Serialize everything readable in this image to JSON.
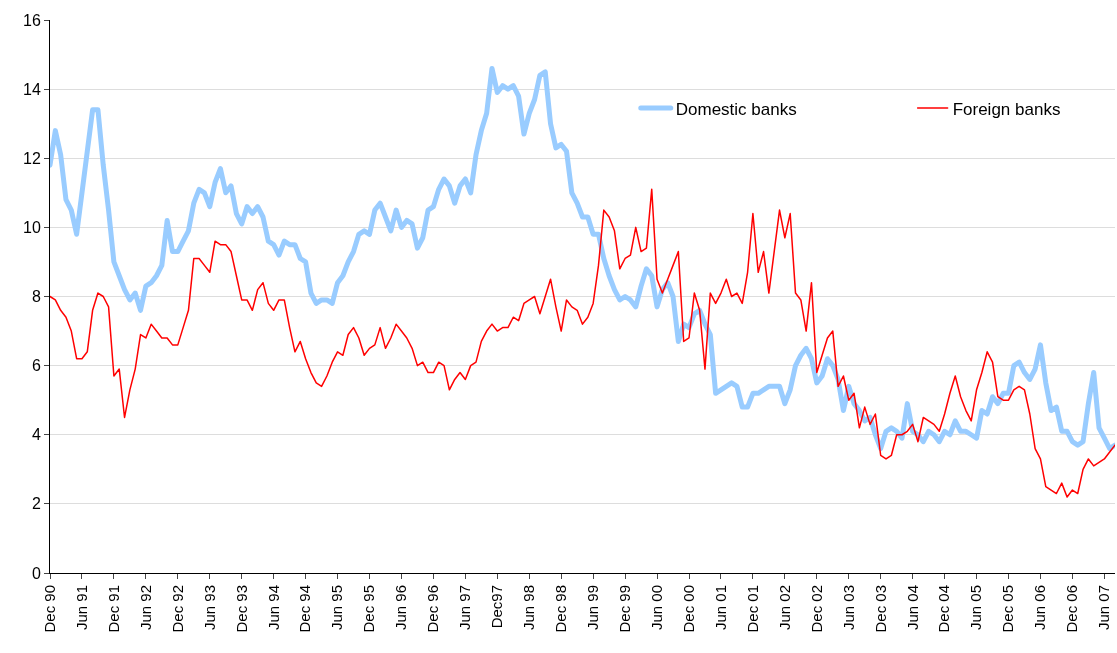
{
  "chart_data": {
    "type": "line",
    "categories": [
      "Dec 90",
      null,
      null,
      null,
      null,
      null,
      "Jun 91",
      null,
      null,
      null,
      null,
      null,
      "Dec 91",
      null,
      null,
      null,
      null,
      null,
      "Jun 92",
      null,
      null,
      null,
      null,
      null,
      "Dec 92",
      null,
      null,
      null,
      null,
      null,
      "Jun 93",
      null,
      null,
      null,
      null,
      null,
      "Dec 93",
      null,
      null,
      null,
      null,
      null,
      "Jun 94",
      null,
      null,
      null,
      null,
      null,
      "Dec 94",
      null,
      null,
      null,
      null,
      null,
      "Jun 95",
      null,
      null,
      null,
      null,
      null,
      "Dec 95",
      null,
      null,
      null,
      null,
      null,
      "Jun 96",
      null,
      null,
      null,
      null,
      null,
      "Dec 96",
      null,
      null,
      null,
      null,
      null,
      "Jun 97",
      null,
      null,
      null,
      null,
      null,
      "Dec97",
      null,
      null,
      null,
      null,
      null,
      "Jun 98",
      null,
      null,
      null,
      null,
      null,
      "Dec 98",
      null,
      null,
      null,
      null,
      null,
      "Jun 99",
      null,
      null,
      null,
      null,
      null,
      "Dec 99",
      null,
      null,
      null,
      null,
      null,
      "Jun 00",
      null,
      null,
      null,
      null,
      null,
      "Dec 00",
      null,
      null,
      null,
      null,
      null,
      "Jun 01",
      null,
      null,
      null,
      null,
      null,
      "Dec 01",
      null,
      null,
      null,
      null,
      null,
      "Jun 02",
      null,
      null,
      null,
      null,
      null,
      "Dec 02",
      null,
      null,
      null,
      null,
      null,
      "Jun 03",
      null,
      null,
      null,
      null,
      null,
      "Dec 03",
      null,
      null,
      null,
      null,
      null,
      "Jun 04",
      null,
      null,
      null,
      null,
      null,
      "Dec 04",
      null,
      null,
      null,
      null,
      null,
      "Jun 05",
      null,
      null,
      null,
      null,
      null,
      "Dec 05",
      null,
      null,
      null,
      null,
      null,
      "Jun 06",
      null,
      null,
      null,
      null,
      null,
      "Dec 06",
      null,
      null,
      null,
      null,
      null,
      "Jun 07",
      null,
      null
    ],
    "series": [
      {
        "name": "Domestic banks",
        "color": "#99ccff",
        "values": [
          11.8,
          12.8,
          12.1,
          10.8,
          10.5,
          9.8,
          11.0,
          12.2,
          13.4,
          13.4,
          11.8,
          10.5,
          9.0,
          8.6,
          8.2,
          7.9,
          8.1,
          7.6,
          8.3,
          8.4,
          8.6,
          8.9,
          10.2,
          9.3,
          9.3,
          9.6,
          9.9,
          10.7,
          11.1,
          11.0,
          10.6,
          11.3,
          11.7,
          11.0,
          11.2,
          10.4,
          10.1,
          10.6,
          10.4,
          10.6,
          10.3,
          9.6,
          9.5,
          9.2,
          9.6,
          9.5,
          9.5,
          9.1,
          9.0,
          8.1,
          7.8,
          7.9,
          7.9,
          7.8,
          8.4,
          8.6,
          9.0,
          9.3,
          9.8,
          9.9,
          9.8,
          10.5,
          10.7,
          10.3,
          9.9,
          10.5,
          10.0,
          10.2,
          10.1,
          9.4,
          9.7,
          10.5,
          10.6,
          11.1,
          11.4,
          11.2,
          10.7,
          11.2,
          11.4,
          11.0,
          12.1,
          12.8,
          13.3,
          14.6,
          13.9,
          14.1,
          14.0,
          14.1,
          13.8,
          12.7,
          13.3,
          13.7,
          14.4,
          14.5,
          13.0,
          12.3,
          12.4,
          12.2,
          11.0,
          10.7,
          10.3,
          10.3,
          9.8,
          9.8,
          9.1,
          8.6,
          8.2,
          7.9,
          8.0,
          7.9,
          7.7,
          8.3,
          8.8,
          8.6,
          7.7,
          8.2,
          8.4,
          8.0,
          6.7,
          7.2,
          7.1,
          7.5,
          7.6,
          7.2,
          6.9,
          5.2,
          5.3,
          5.4,
          5.5,
          5.4,
          4.8,
          4.8,
          5.2,
          5.2,
          5.3,
          5.4,
          5.4,
          5.4,
          4.9,
          5.3,
          6.0,
          6.3,
          6.5,
          6.2,
          5.5,
          5.7,
          6.2,
          6.0,
          5.6,
          4.7,
          5.4,
          4.9,
          4.7,
          4.4,
          4.5,
          4.0,
          3.6,
          4.1,
          4.2,
          4.1,
          3.9,
          4.9,
          4.1,
          4.0,
          3.8,
          4.1,
          4.0,
          3.8,
          4.1,
          4.0,
          4.4,
          4.1,
          4.1,
          4.0,
          3.9,
          4.7,
          4.6,
          5.1,
          4.9,
          5.2,
          5.2,
          6.0,
          6.1,
          5.8,
          5.6,
          5.9,
          6.6,
          5.5,
          4.7,
          4.8,
          4.1,
          4.1,
          3.8,
          3.7,
          3.8,
          4.9,
          5.8,
          4.2,
          3.9,
          3.6,
          3.7
        ]
      },
      {
        "name": "Foreign banks",
        "color": "#ff0000",
        "values": [
          8.0,
          7.9,
          7.6,
          7.4,
          7.0,
          6.2,
          6.2,
          6.4,
          7.6,
          8.1,
          8.0,
          7.7,
          5.7,
          5.9,
          4.5,
          5.3,
          5.9,
          6.9,
          6.8,
          7.2,
          7.0,
          6.8,
          6.8,
          6.6,
          6.6,
          7.1,
          7.6,
          9.1,
          9.1,
          8.9,
          8.7,
          9.6,
          9.5,
          9.5,
          9.3,
          8.6,
          7.9,
          7.9,
          7.6,
          8.2,
          8.4,
          7.8,
          7.6,
          7.9,
          7.9,
          7.1,
          6.4,
          6.7,
          6.2,
          5.8,
          5.5,
          5.4,
          5.7,
          6.1,
          6.4,
          6.3,
          6.9,
          7.1,
          6.8,
          6.3,
          6.5,
          6.6,
          7.1,
          6.5,
          6.8,
          7.2,
          7.0,
          6.8,
          6.5,
          6.0,
          6.1,
          5.8,
          5.8,
          6.1,
          6.0,
          5.3,
          5.6,
          5.8,
          5.6,
          6.0,
          6.1,
          6.7,
          7.0,
          7.2,
          7.0,
          7.1,
          7.1,
          7.4,
          7.3,
          7.8,
          7.9,
          8.0,
          7.5,
          8.0,
          8.5,
          7.7,
          7.0,
          7.9,
          7.7,
          7.6,
          7.2,
          7.4,
          7.8,
          8.9,
          10.5,
          10.3,
          9.9,
          8.8,
          9.1,
          9.2,
          10.0,
          9.3,
          9.4,
          11.1,
          8.5,
          8.1,
          8.5,
          8.9,
          9.3,
          6.7,
          6.8,
          8.1,
          7.6,
          5.9,
          8.1,
          7.8,
          8.1,
          8.5,
          8.0,
          8.1,
          7.8,
          8.7,
          10.4,
          8.7,
          9.3,
          8.1,
          9.3,
          10.5,
          9.7,
          10.4,
          8.1,
          7.9,
          7.0,
          8.4,
          5.8,
          6.3,
          6.8,
          7.0,
          5.4,
          5.7,
          5.0,
          5.2,
          4.2,
          4.8,
          4.3,
          4.6,
          3.4,
          3.3,
          3.4,
          4.0,
          4.0,
          4.1,
          4.3,
          3.8,
          4.5,
          4.4,
          4.3,
          4.1,
          4.6,
          5.2,
          5.7,
          5.1,
          4.7,
          4.4,
          5.3,
          5.8,
          6.4,
          6.1,
          5.1,
          5.0,
          5.0,
          5.3,
          5.4,
          5.3,
          4.6,
          3.6,
          3.3,
          2.5,
          2.4,
          2.3,
          2.6,
          2.2,
          2.4,
          2.3,
          3.0,
          3.3,
          3.1,
          3.2,
          3.3,
          3.5,
          3.7
        ]
      }
    ],
    "ylim": [
      0,
      16
    ],
    "yticks": [
      0,
      2,
      4,
      6,
      8,
      10,
      12,
      14,
      16
    ],
    "grid": "y",
    "legend": "top right",
    "marker": "none",
    "line_style": "solid"
  }
}
